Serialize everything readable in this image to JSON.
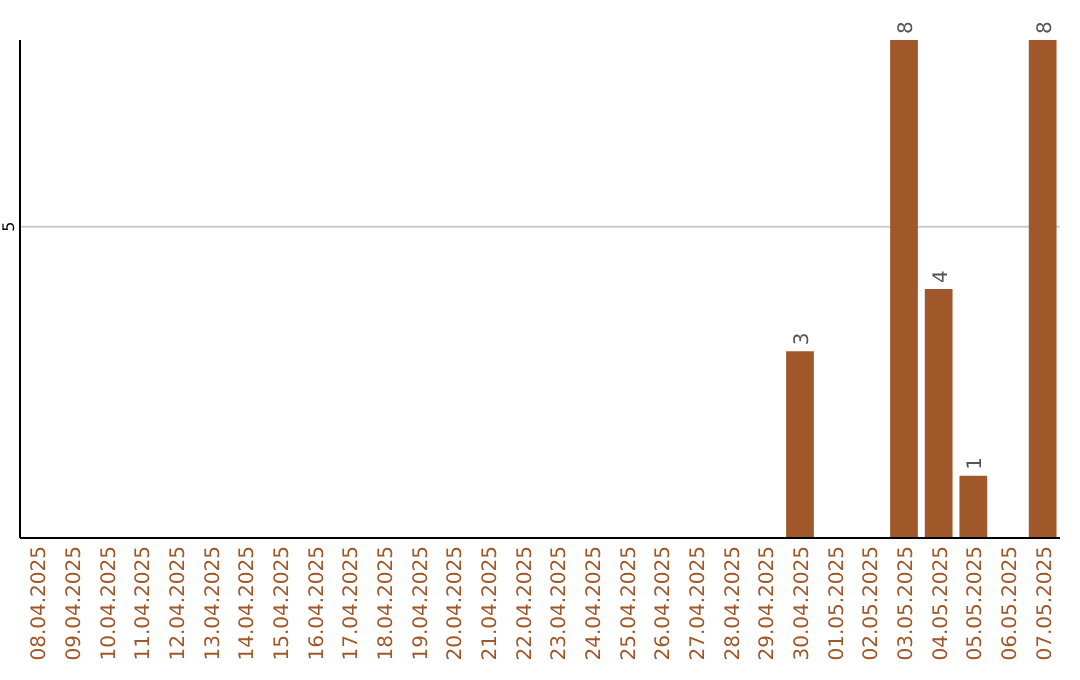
{
  "chart_data": {
    "type": "bar",
    "categories": [
      "08.04.2025",
      "09.04.2025",
      "10.04.2025",
      "11.04.2025",
      "12.04.2025",
      "13.04.2025",
      "14.04.2025",
      "15.04.2025",
      "16.04.2025",
      "17.04.2025",
      "18.04.2025",
      "19.04.2025",
      "20.04.2025",
      "21.04.2025",
      "22.04.2025",
      "23.04.2025",
      "24.04.2025",
      "25.04.2025",
      "26.04.2025",
      "27.04.2025",
      "28.04.2025",
      "29.04.2025",
      "30.04.2025",
      "01.05.2025",
      "02.05.2025",
      "03.05.2025",
      "04.05.2025",
      "05.05.2025",
      "06.05.2025",
      "07.05.2025"
    ],
    "values": [
      null,
      null,
      null,
      null,
      null,
      null,
      null,
      null,
      null,
      null,
      null,
      null,
      null,
      null,
      null,
      null,
      null,
      null,
      null,
      null,
      null,
      null,
      3,
      null,
      null,
      8,
      4,
      1,
      null,
      8
    ],
    "data_labels": true,
    "color": "#a0572a",
    "ylim": [
      0,
      8
    ],
    "yticks": [
      5
    ],
    "grid": "y"
  }
}
